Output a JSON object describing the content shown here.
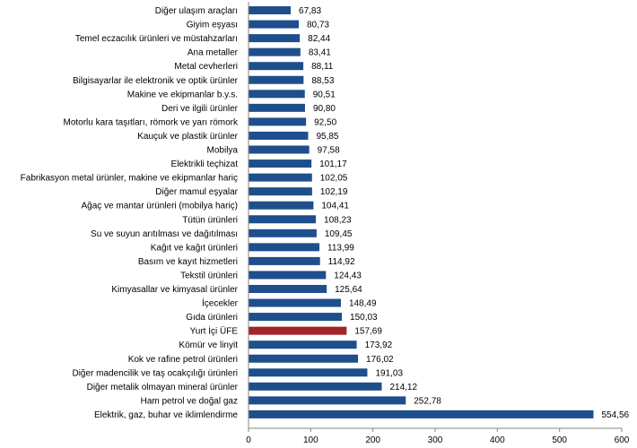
{
  "chart_data": {
    "type": "bar",
    "orientation": "horizontal",
    "categories": [
      "Diğer ulaşım araçları",
      "Giyim eşyası",
      "Temel eczacılık ürünleri ve müstahzarları",
      "Ana metaller",
      "Metal cevherleri",
      "Bilgisayarlar ile elektronik ve optik ürünler",
      "Makine ve ekipmanlar b.y.s.",
      "Deri ve ilgili ürünler",
      "Motorlu kara taşıtları, römork ve yarı römork",
      "Kauçuk ve plastik ürünler",
      "Mobilya",
      "Elektrikli teçhizat",
      "Fabrikasyon metal ürünler, makine ve ekipmanlar hariç",
      "Diğer mamul eşyalar",
      "Ağaç ve mantar ürünleri (mobilya hariç)",
      "Tütün ürünleri",
      "Su ve suyun arıtılması ve dağıtılması",
      "Kağıt ve kağıt ürünleri",
      "Basım ve kayıt hizmetleri",
      "Tekstil ürünleri",
      "Kimyasallar ve kimyasal ürünler",
      "İçecekler",
      "Gıda ürünleri",
      "Yurt İçi ÜFE",
      "Kömür ve linyit",
      "Kok ve rafine petrol ürünleri",
      "Diğer madencilik ve taş ocakçılığı ürünleri",
      "Diğer metalik olmayan mineral ürünler",
      "Ham petrol ve doğal gaz",
      "Elektrik, gaz, buhar ve iklimlendirme"
    ],
    "values": [
      67.83,
      80.73,
      82.44,
      83.41,
      88.11,
      88.53,
      90.51,
      90.8,
      92.5,
      95.85,
      97.58,
      101.17,
      102.05,
      102.19,
      104.41,
      108.23,
      109.45,
      113.99,
      114.92,
      124.43,
      125.64,
      148.49,
      150.03,
      157.69,
      173.92,
      176.02,
      191.03,
      214.12,
      252.78,
      554.56
    ],
    "value_labels": [
      "67,83",
      "80,73",
      "82,44",
      "83,41",
      "88,11",
      "88,53",
      "90,51",
      "90,80",
      "92,50",
      "95,85",
      "97,58",
      "101,17",
      "102,05",
      "102,19",
      "104,41",
      "108,23",
      "109,45",
      "113,99",
      "114,92",
      "124,43",
      "125,64",
      "148,49",
      "150,03",
      "157,69",
      "173,92",
      "176,02",
      "191,03",
      "214,12",
      "252,78",
      "554,56"
    ],
    "highlight_category": "Yurt İçi ÜFE",
    "colors": {
      "bar": "#1f4e8c",
      "highlight": "#a3232a",
      "axis": "#868686"
    },
    "xlim": [
      0,
      600
    ],
    "x_ticks": [
      0,
      100,
      200,
      300,
      400,
      500,
      600
    ],
    "x_tick_labels": [
      "0",
      "100",
      "200",
      "300",
      "400",
      "500",
      "600"
    ],
    "grid": false,
    "title": "",
    "xlabel": "",
    "ylabel": ""
  }
}
